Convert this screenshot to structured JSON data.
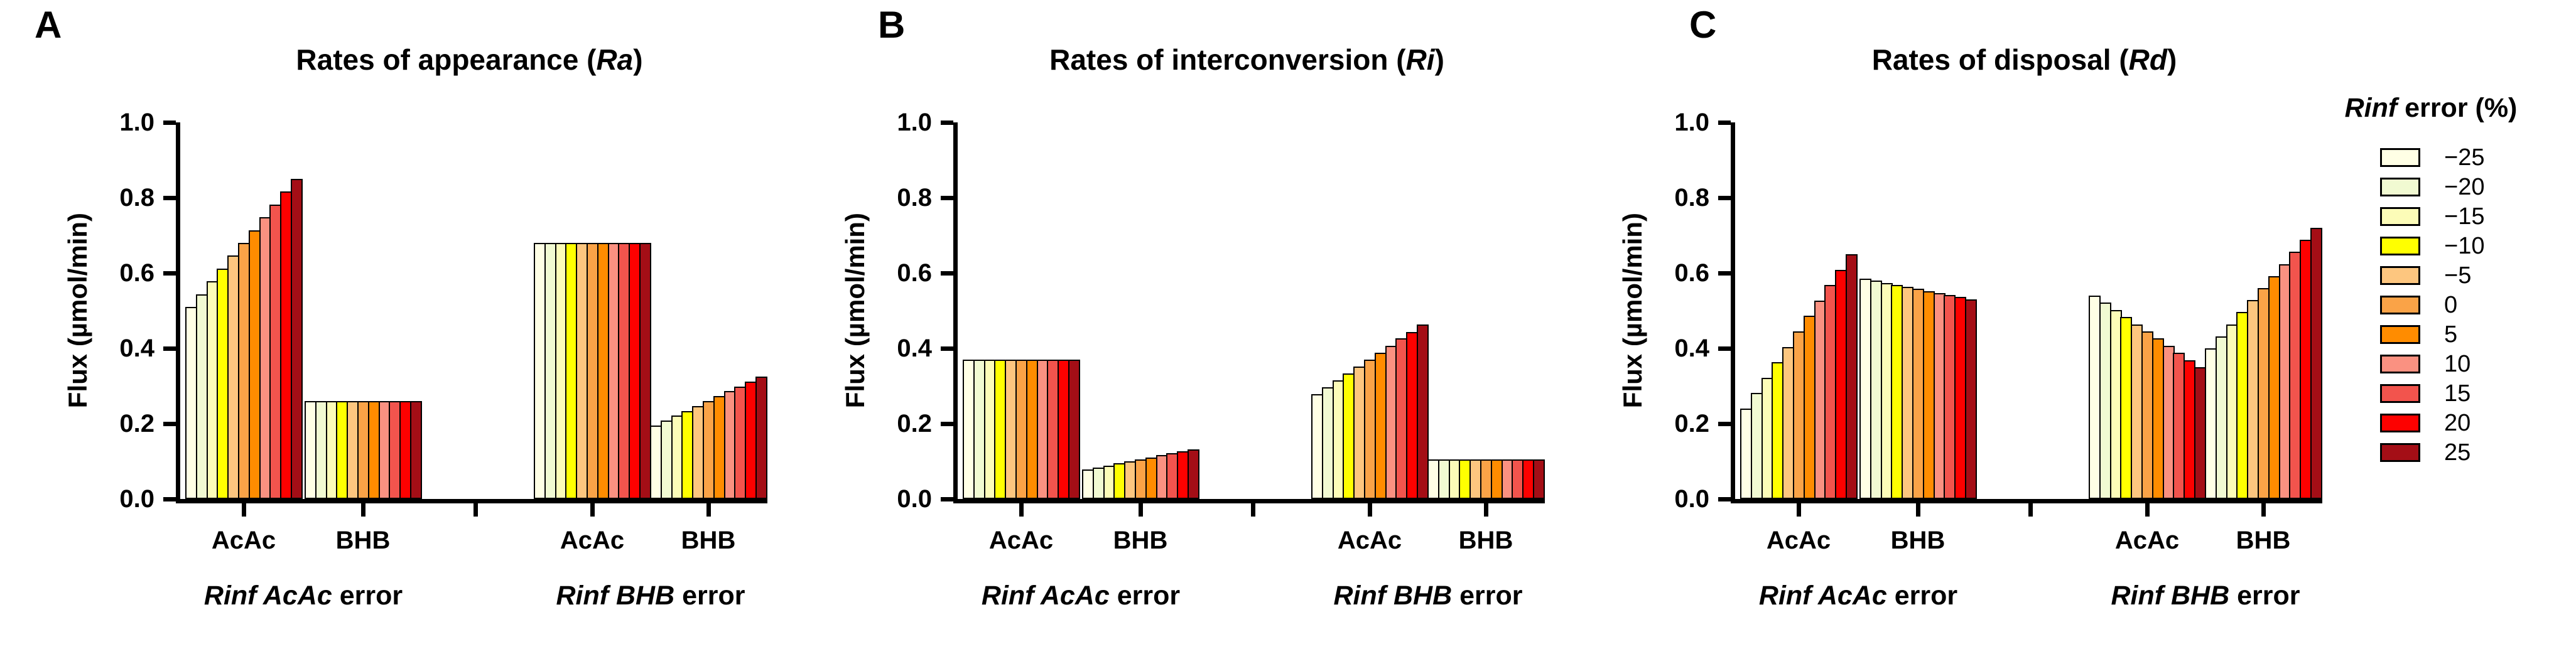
{
  "figure": {
    "ylabel": "Flux (µmol/min)",
    "categories": [
      "AcAc",
      "BHB"
    ],
    "halves": [
      {
        "italic": "Rinf AcAc",
        "rest": " error"
      },
      {
        "italic": "Rinf BHB",
        "rest": " error"
      }
    ],
    "panels": [
      {
        "letter": "A",
        "title_pre": "Rates of appearance (",
        "title_italic": "Ra",
        "title_post": ")"
      },
      {
        "letter": "B",
        "title_pre": "Rates of interconversion (",
        "title_italic": "Ri",
        "title_post": ")"
      },
      {
        "letter": "C",
        "title_pre": "Rates of disposal (",
        "title_italic": "Rd",
        "title_post": ")"
      }
    ]
  },
  "legend": {
    "title_italic": "Rinf",
    "title_rest": " error (%)",
    "entries": [
      {
        "label": "−25",
        "color": "#FFFFE5"
      },
      {
        "label": "−20",
        "color": "#F1FAD2"
      },
      {
        "label": "−15",
        "color": "#FCFCB8"
      },
      {
        "label": "−10",
        "color": "#FFFF00"
      },
      {
        "label": "−5",
        "color": "#FDC67F"
      },
      {
        "label": "0",
        "color": "#FAA347"
      },
      {
        "label": "5",
        "color": "#FF8C00"
      },
      {
        "label": "10",
        "color": "#FA9181"
      },
      {
        "label": "15",
        "color": "#F2544D"
      },
      {
        "label": "20",
        "color": "#FD0100"
      },
      {
        "label": "25",
        "color": "#A40E16"
      }
    ]
  },
  "chart_data": [
    {
      "type": "bar",
      "title": "Rates of appearance (Ra)",
      "ylabel": "Flux (µmol/min)",
      "ylim": [
        0,
        1.0
      ],
      "yticks": [
        0,
        0.2,
        0.4,
        0.6,
        0.8,
        1.0
      ],
      "legend_title": "Rinf error (%)",
      "series_levels": [
        -25,
        -20,
        -15,
        -10,
        -5,
        0,
        5,
        10,
        15,
        20,
        25
      ],
      "groups": [
        {
          "half": "Rinf AcAc error",
          "category": "AcAc",
          "values": [
            0.51,
            0.544,
            0.578,
            0.612,
            0.646,
            0.68,
            0.714,
            0.748,
            0.782,
            0.816,
            0.85
          ]
        },
        {
          "half": "Rinf AcAc error",
          "category": "BHB",
          "values": [
            0.26,
            0.26,
            0.26,
            0.26,
            0.26,
            0.26,
            0.26,
            0.26,
            0.26,
            0.26,
            0.26
          ]
        },
        {
          "half": "Rinf BHB error",
          "category": "AcAc",
          "values": [
            0.68,
            0.68,
            0.68,
            0.68,
            0.68,
            0.68,
            0.68,
            0.68,
            0.68,
            0.68,
            0.68
          ]
        },
        {
          "half": "Rinf BHB error",
          "category": "BHB",
          "values": [
            0.195,
            0.208,
            0.221,
            0.234,
            0.247,
            0.26,
            0.273,
            0.286,
            0.299,
            0.312,
            0.325
          ]
        }
      ]
    },
    {
      "type": "bar",
      "title": "Rates of interconversion (Ri)",
      "ylabel": "Flux (µmol/min)",
      "ylim": [
        0,
        1.0
      ],
      "yticks": [
        0,
        0.2,
        0.4,
        0.6,
        0.8,
        1.0
      ],
      "legend_title": "Rinf error (%)",
      "series_levels": [
        -25,
        -20,
        -15,
        -10,
        -5,
        0,
        5,
        10,
        15,
        20,
        25
      ],
      "groups": [
        {
          "half": "Rinf AcAc error",
          "category": "AcAc",
          "values": [
            0.37,
            0.37,
            0.37,
            0.37,
            0.37,
            0.37,
            0.37,
            0.37,
            0.37,
            0.37,
            0.37
          ]
        },
        {
          "half": "Rinf AcAc error",
          "category": "BHB",
          "values": [
            0.079,
            0.084,
            0.089,
            0.095,
            0.1,
            0.105,
            0.11,
            0.116,
            0.121,
            0.126,
            0.131
          ]
        },
        {
          "half": "Rinf BHB error",
          "category": "AcAc",
          "values": [
            0.278,
            0.296,
            0.315,
            0.333,
            0.352,
            0.37,
            0.389,
            0.407,
            0.426,
            0.444,
            0.463
          ]
        },
        {
          "half": "Rinf BHB error",
          "category": "BHB",
          "values": [
            0.105,
            0.105,
            0.105,
            0.105,
            0.105,
            0.105,
            0.105,
            0.105,
            0.105,
            0.105,
            0.105
          ]
        }
      ]
    },
    {
      "type": "bar",
      "title": "Rates of disposal (Rd)",
      "ylabel": "Flux (µmol/min)",
      "ylim": [
        0,
        1.0
      ],
      "yticks": [
        0,
        0.2,
        0.4,
        0.6,
        0.8,
        1.0
      ],
      "legend_title": "Rinf error (%)",
      "series_levels": [
        -25,
        -20,
        -15,
        -10,
        -5,
        0,
        5,
        10,
        15,
        20,
        25
      ],
      "groups": [
        {
          "half": "Rinf AcAc error",
          "category": "AcAc",
          "values": [
            0.24,
            0.281,
            0.322,
            0.363,
            0.404,
            0.445,
            0.486,
            0.527,
            0.568,
            0.609,
            0.65
          ]
        },
        {
          "half": "Rinf AcAc error",
          "category": "BHB",
          "values": [
            0.585,
            0.58,
            0.574,
            0.569,
            0.563,
            0.558,
            0.552,
            0.547,
            0.541,
            0.536,
            0.53
          ]
        },
        {
          "half": "Rinf BHB error",
          "category": "AcAc",
          "values": [
            0.54,
            0.521,
            0.502,
            0.483,
            0.464,
            0.445,
            0.426,
            0.407,
            0.388,
            0.369,
            0.35
          ]
        },
        {
          "half": "Rinf BHB error",
          "category": "BHB",
          "values": [
            0.4,
            0.432,
            0.464,
            0.496,
            0.528,
            0.56,
            0.592,
            0.624,
            0.656,
            0.688,
            0.72
          ]
        }
      ]
    }
  ]
}
